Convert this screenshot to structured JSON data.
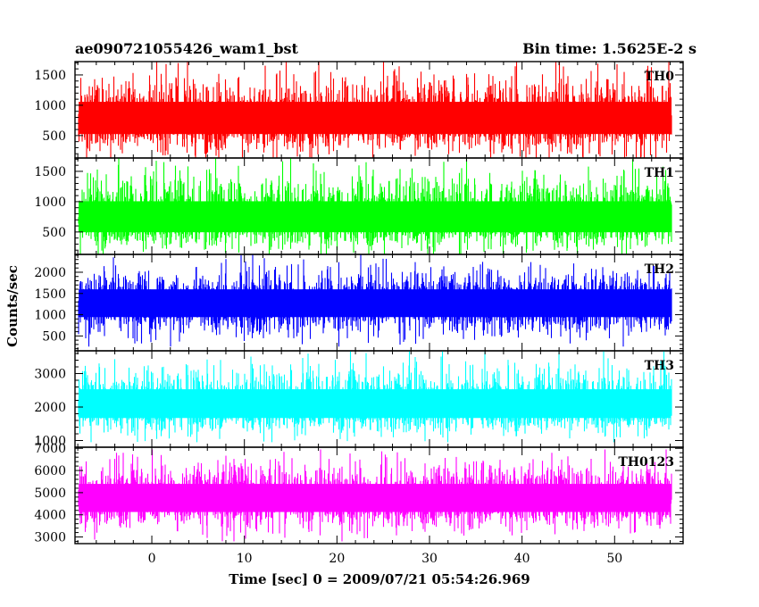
{
  "chart_data": {
    "type": "line",
    "title_left": "ae090721055426_wam1_bst",
    "title_right": "Bin time: 1.5625E-2 s",
    "xlabel": "Time [sec] 0 = 2009/07/21 05:54:26.969",
    "ylabel": "Counts/sec",
    "xlim": [
      -8.3,
      57.4
    ],
    "x_data_range": [
      -7.9,
      56.1
    ],
    "xticks": [
      0,
      10,
      20,
      30,
      40,
      50
    ],
    "x_minor_step": 2,
    "grid": false,
    "panels": [
      {
        "name": "TH0",
        "color": "#ff0000",
        "ylim": [
          130,
          1720
        ],
        "yticks": [
          500,
          1000,
          1500
        ],
        "y_minor_step": 100,
        "mean": 750,
        "typical_range": [
          200,
          1500
        ],
        "extreme_range": [
          130,
          1720
        ]
      },
      {
        "name": "TH1",
        "color": "#00ff00",
        "ylim": [
          130,
          1720
        ],
        "yticks": [
          500,
          1000,
          1500
        ],
        "y_minor_step": 100,
        "mean": 700,
        "typical_range": [
          200,
          1450
        ],
        "extreme_range": [
          130,
          1720
        ]
      },
      {
        "name": "TH2",
        "color": "#0000ff",
        "ylim": [
          150,
          2420
        ],
        "yticks": [
          500,
          1000,
          1500,
          2000
        ],
        "y_minor_step": 100,
        "mean": 1250,
        "typical_range": [
          500,
          2100
        ],
        "extreme_range": [
          250,
          2420
        ]
      },
      {
        "name": "TH3",
        "color": "#00ffff",
        "ylim": [
          800,
          3680
        ],
        "yticks": [
          1000,
          2000,
          3000
        ],
        "y_minor_step": 200,
        "mean": 2000,
        "typical_range": [
          1200,
          3300
        ],
        "extreme_range": [
          950,
          3680
        ]
      },
      {
        "name": "TH0123",
        "color": "#ff00ff",
        "ylim": [
          2700,
          7050
        ],
        "yticks": [
          3000,
          4000,
          5000,
          6000,
          7000
        ],
        "y_minor_step": 200,
        "mean": 4700,
        "typical_range": [
          3300,
          6400
        ],
        "extreme_range": [
          2800,
          6950
        ]
      }
    ]
  }
}
